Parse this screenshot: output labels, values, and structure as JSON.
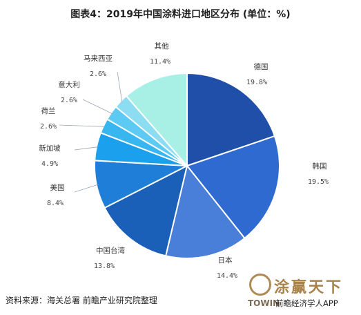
{
  "title": "图表4：2019年中国涂料进口地区分布 (单位：%)",
  "source": "资料来源：海关总署 前瞻产业研究院整理",
  "brand": {
    "name": "涂赢天下",
    "en": "TOWIN",
    "app": "前瞻经济学人APP"
  },
  "chart_data": {
    "type": "pie",
    "title": "图表4：2019年中国涂料进口地区分布 (单位：%)",
    "slices": [
      {
        "name": "德国",
        "label": "19.8%",
        "value": 19.8,
        "color": "#1f4fa8"
      },
      {
        "name": "韩国",
        "label": "19.5%",
        "value": 19.5,
        "color": "#2f6ad0"
      },
      {
        "name": "日本",
        "label": "14.4%",
        "value": 14.4,
        "color": "#4a7fd9"
      },
      {
        "name": "中国台湾",
        "label": "13.8%",
        "value": 13.8,
        "color": "#1a60b8"
      },
      {
        "name": "美国",
        "label": "8.4%",
        "value": 8.4,
        "color": "#1f7fd8"
      },
      {
        "name": "新加坡",
        "label": "4.9%",
        "value": 4.9,
        "color": "#1aa0ec"
      },
      {
        "name": "荷兰",
        "label": "2.6%",
        "value": 2.6,
        "color": "#37b6f0"
      },
      {
        "name": "意大利",
        "label": "2.6%",
        "value": 2.6,
        "color": "#5ccaf3"
      },
      {
        "name": "马来西亚",
        "label": "2.6%",
        "value": 2.6,
        "color": "#8cdcf2"
      },
      {
        "name": "其他",
        "label": "11.4%",
        "value": 11.4,
        "color": "#a8f0e6"
      }
    ],
    "start_angle_deg": 0,
    "direction": "clockwise"
  }
}
